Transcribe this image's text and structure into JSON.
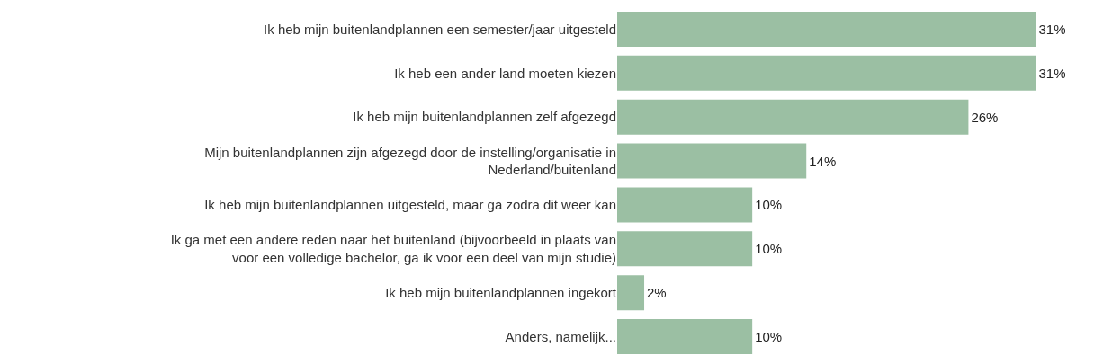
{
  "chart_data": {
    "type": "bar",
    "orientation": "horizontal",
    "categories": [
      "Ik heb mijn buitenlandplannen een semester/jaar uitgesteld",
      "Ik heb een ander land moeten kiezen",
      "Ik heb mijn buitenlandplannen zelf afgezegd",
      "Mijn buitenlandplannen zijn afgezegd door de instelling/organisatie in Nederland/buitenland",
      "Ik heb mijn buitenlandplannen uitgesteld, maar ga zodra dit weer kan",
      "Ik ga met een andere reden naar het buitenland (bijvoorbeeld in plaats van voor een volledige bachelor, ga ik voor een deel van mijn studie)",
      "Ik heb mijn buitenlandplannen ingekort",
      "Anders, namelijk..."
    ],
    "values": [
      31,
      31,
      26,
      14,
      10,
      10,
      2,
      10
    ],
    "value_labels": [
      "31%",
      "31%",
      "26%",
      "14%",
      "10%",
      "10%",
      "2%",
      "10%"
    ],
    "color": "#9bbfa3"
  }
}
